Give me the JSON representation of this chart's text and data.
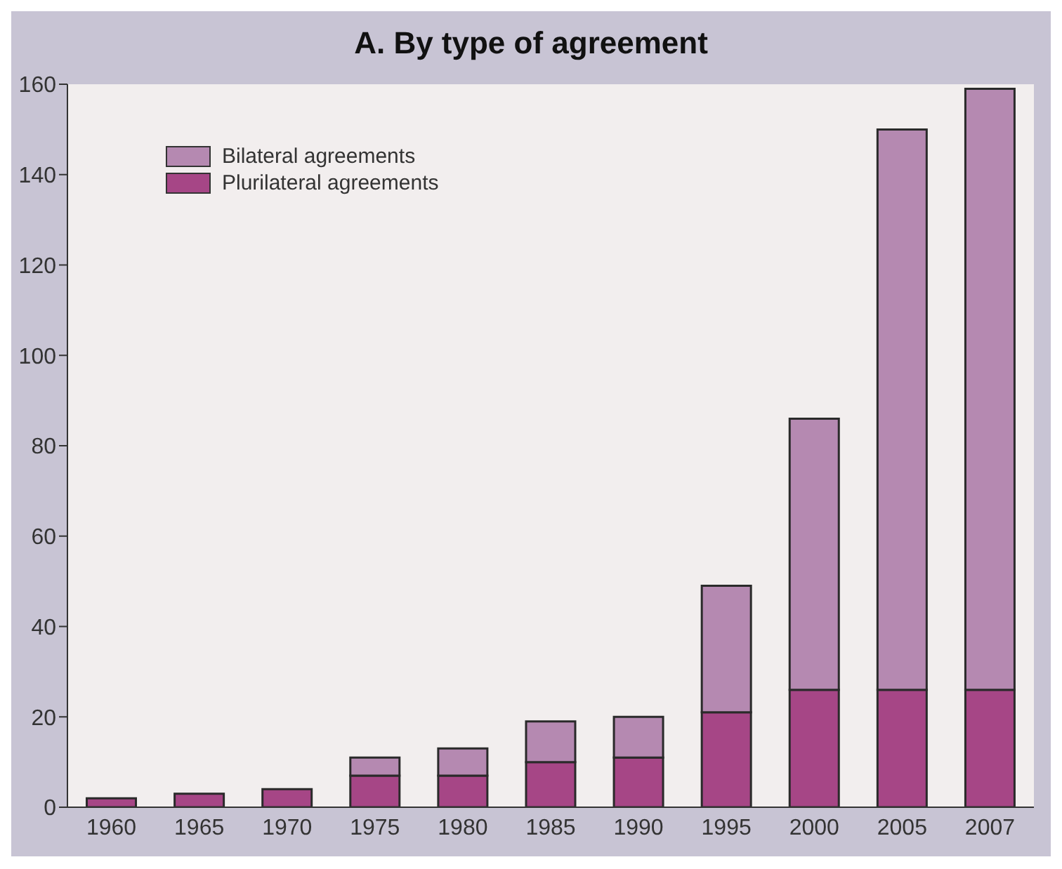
{
  "chart_data": {
    "type": "bar",
    "title": "A. By type of agreement",
    "categories": [
      "1960",
      "1965",
      "1970",
      "1975",
      "1980",
      "1985",
      "1990",
      "1995",
      "2000",
      "2005",
      "2007"
    ],
    "stacked": true,
    "series": [
      {
        "name": "Plurilateral agreements",
        "color": "#a64686",
        "values": [
          2,
          3,
          4,
          7,
          7,
          10,
          11,
          21,
          26,
          26,
          26
        ]
      },
      {
        "name": "Bilateral agreements",
        "color": "#b589b1",
        "values": [
          0,
          0,
          0,
          4,
          6,
          9,
          9,
          28,
          60,
          124,
          133
        ]
      }
    ],
    "ylim": [
      0,
      160
    ],
    "yticks": [
      0,
      20,
      40,
      60,
      80,
      100,
      120,
      140,
      160
    ],
    "grid": false,
    "legend": "top left"
  }
}
